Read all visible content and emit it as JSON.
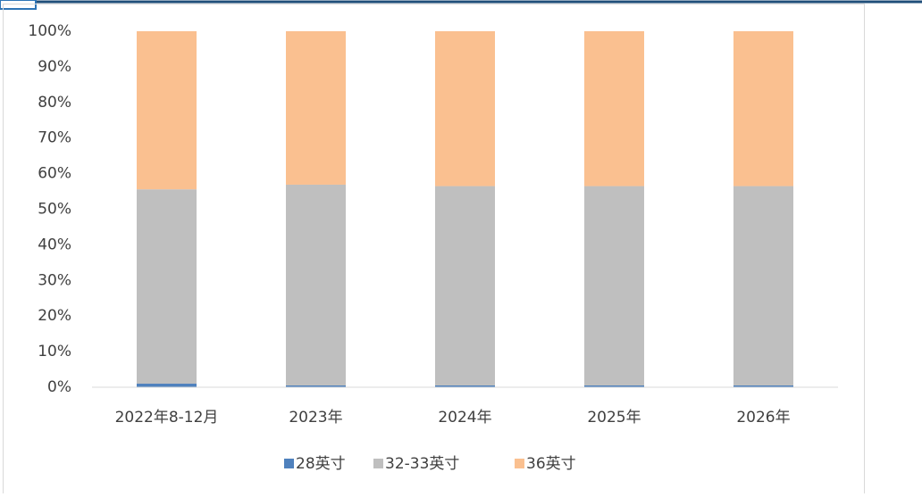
{
  "chart_data": {
    "type": "stacked_bar",
    "categories": [
      "2022年8-12月",
      "2023年",
      "2024年",
      "2025年",
      "2026年"
    ],
    "series": [
      {
        "name": "28英寸",
        "color": "#4f81bd",
        "values": [
          1,
          0.5,
          0.5,
          0.5,
          0.5
        ]
      },
      {
        "name": "32-33英寸",
        "color": "#bfbfbf",
        "values": [
          54.6,
          56.4,
          56,
          56,
          56
        ]
      },
      {
        "name": "36英寸",
        "color": "#fac090",
        "values": [
          44.4,
          43.1,
          43.5,
          43.5,
          43.5
        ]
      }
    ],
    "ylim": [
      0,
      100
    ],
    "yticks": [
      {
        "value": 0,
        "label": "0%"
      },
      {
        "value": 10,
        "label": "10%"
      },
      {
        "value": 20,
        "label": "20%"
      },
      {
        "value": 30,
        "label": "30%"
      },
      {
        "value": 40,
        "label": "40%"
      },
      {
        "value": 50,
        "label": "50%"
      },
      {
        "value": 60,
        "label": "60%"
      },
      {
        "value": 70,
        "label": "70%"
      },
      {
        "value": 80,
        "label": "80%"
      },
      {
        "value": 90,
        "label": "90%"
      },
      {
        "value": 100,
        "label": "100%"
      }
    ],
    "legend": "bottom"
  }
}
